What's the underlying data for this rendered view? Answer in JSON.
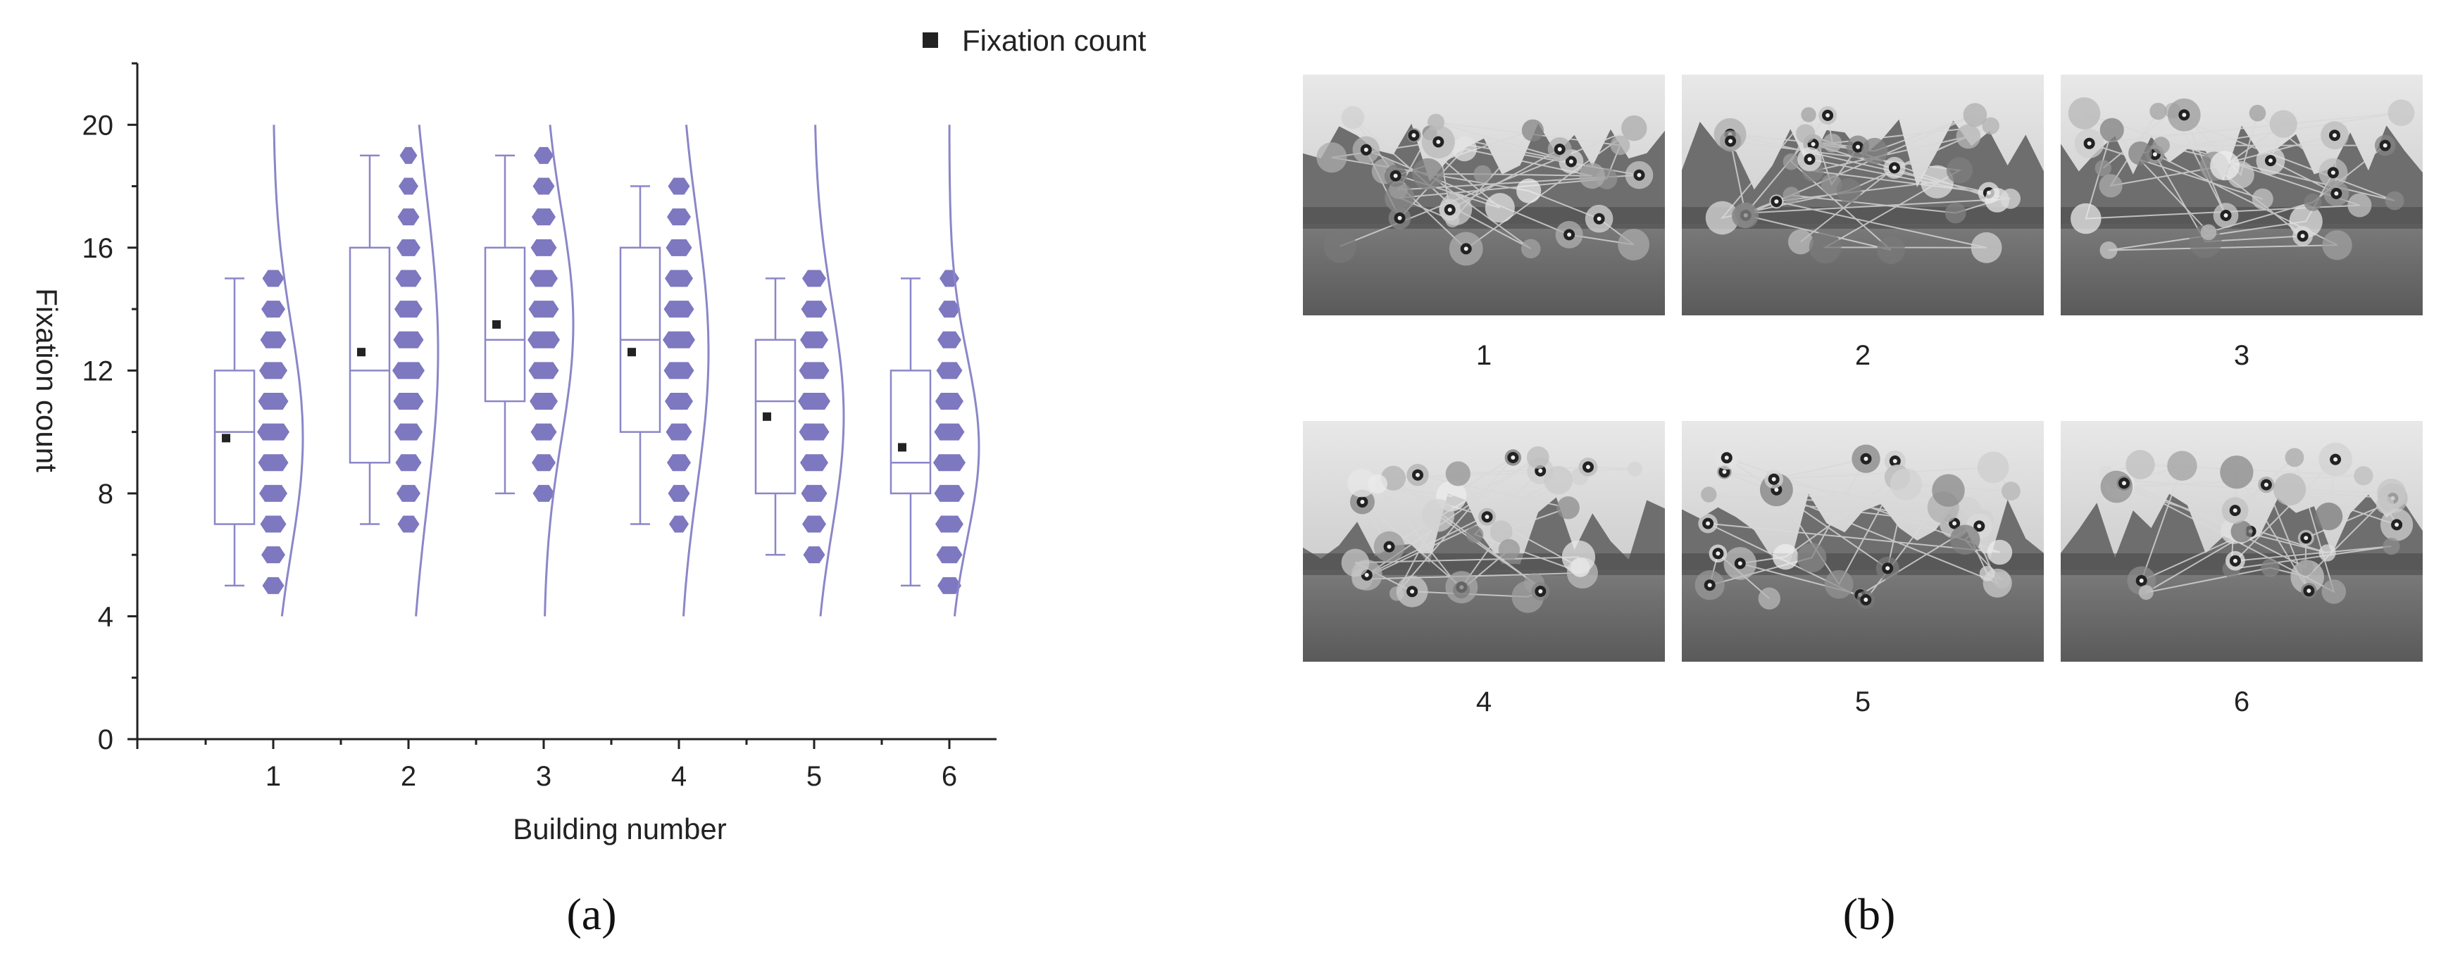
{
  "chart_data": {
    "type": "box",
    "title": "",
    "xlabel": "Building number",
    "ylabel": "Fixation count",
    "categories": [
      "1",
      "2",
      "3",
      "4",
      "5",
      "6"
    ],
    "y_ticks": [
      0,
      4,
      8,
      12,
      16,
      20
    ],
    "ylim": [
      0,
      22
    ],
    "legend": {
      "label": "Fixation count",
      "placement": "top-right",
      "color": "#222222"
    },
    "series": [
      {
        "category": "1",
        "min": 5,
        "q1": 7,
        "median": 10,
        "q3": 12,
        "max": 15,
        "mean": 9.8,
        "points": [
          5,
          6,
          7,
          8,
          9,
          10,
          11,
          12,
          13,
          14,
          15
        ]
      },
      {
        "category": "2",
        "min": 7,
        "q1": 9,
        "median": 12,
        "q3": 16,
        "max": 19,
        "mean": 12.6,
        "points": [
          7,
          8,
          9,
          10,
          11,
          12,
          13,
          14,
          15,
          16,
          17,
          18,
          19
        ]
      },
      {
        "category": "3",
        "min": 8,
        "q1": 11,
        "median": 13,
        "q3": 16,
        "max": 19,
        "mean": 13.5,
        "points": [
          8,
          9,
          10,
          11,
          12,
          13,
          14,
          15,
          16,
          17,
          18,
          19
        ]
      },
      {
        "category": "4",
        "min": 7,
        "q1": 10,
        "median": 13,
        "q3": 16,
        "max": 18,
        "mean": 12.6,
        "points": [
          7,
          8,
          9,
          10,
          11,
          12,
          13,
          14,
          15,
          16,
          17,
          18
        ]
      },
      {
        "category": "5",
        "min": 6,
        "q1": 8,
        "median": 11,
        "q3": 13,
        "max": 15,
        "mean": 10.5,
        "points": [
          6,
          7,
          8,
          9,
          10,
          11,
          12,
          13,
          14,
          15
        ]
      },
      {
        "category": "6",
        "min": 5,
        "q1": 8,
        "median": 9,
        "q3": 12,
        "max": 15,
        "mean": 9.5,
        "points": [
          5,
          6,
          7,
          8,
          9,
          10,
          11,
          12,
          13,
          14,
          15
        ]
      }
    ],
    "colors": {
      "box": "#8b86c8",
      "points": "#7d78bf",
      "mean": "#222222",
      "axis": "#222222"
    }
  },
  "panels": {
    "a": "(a)",
    "b": "(b)"
  },
  "thumbnails": {
    "labels": [
      "1",
      "2",
      "3",
      "4",
      "5",
      "6"
    ]
  }
}
